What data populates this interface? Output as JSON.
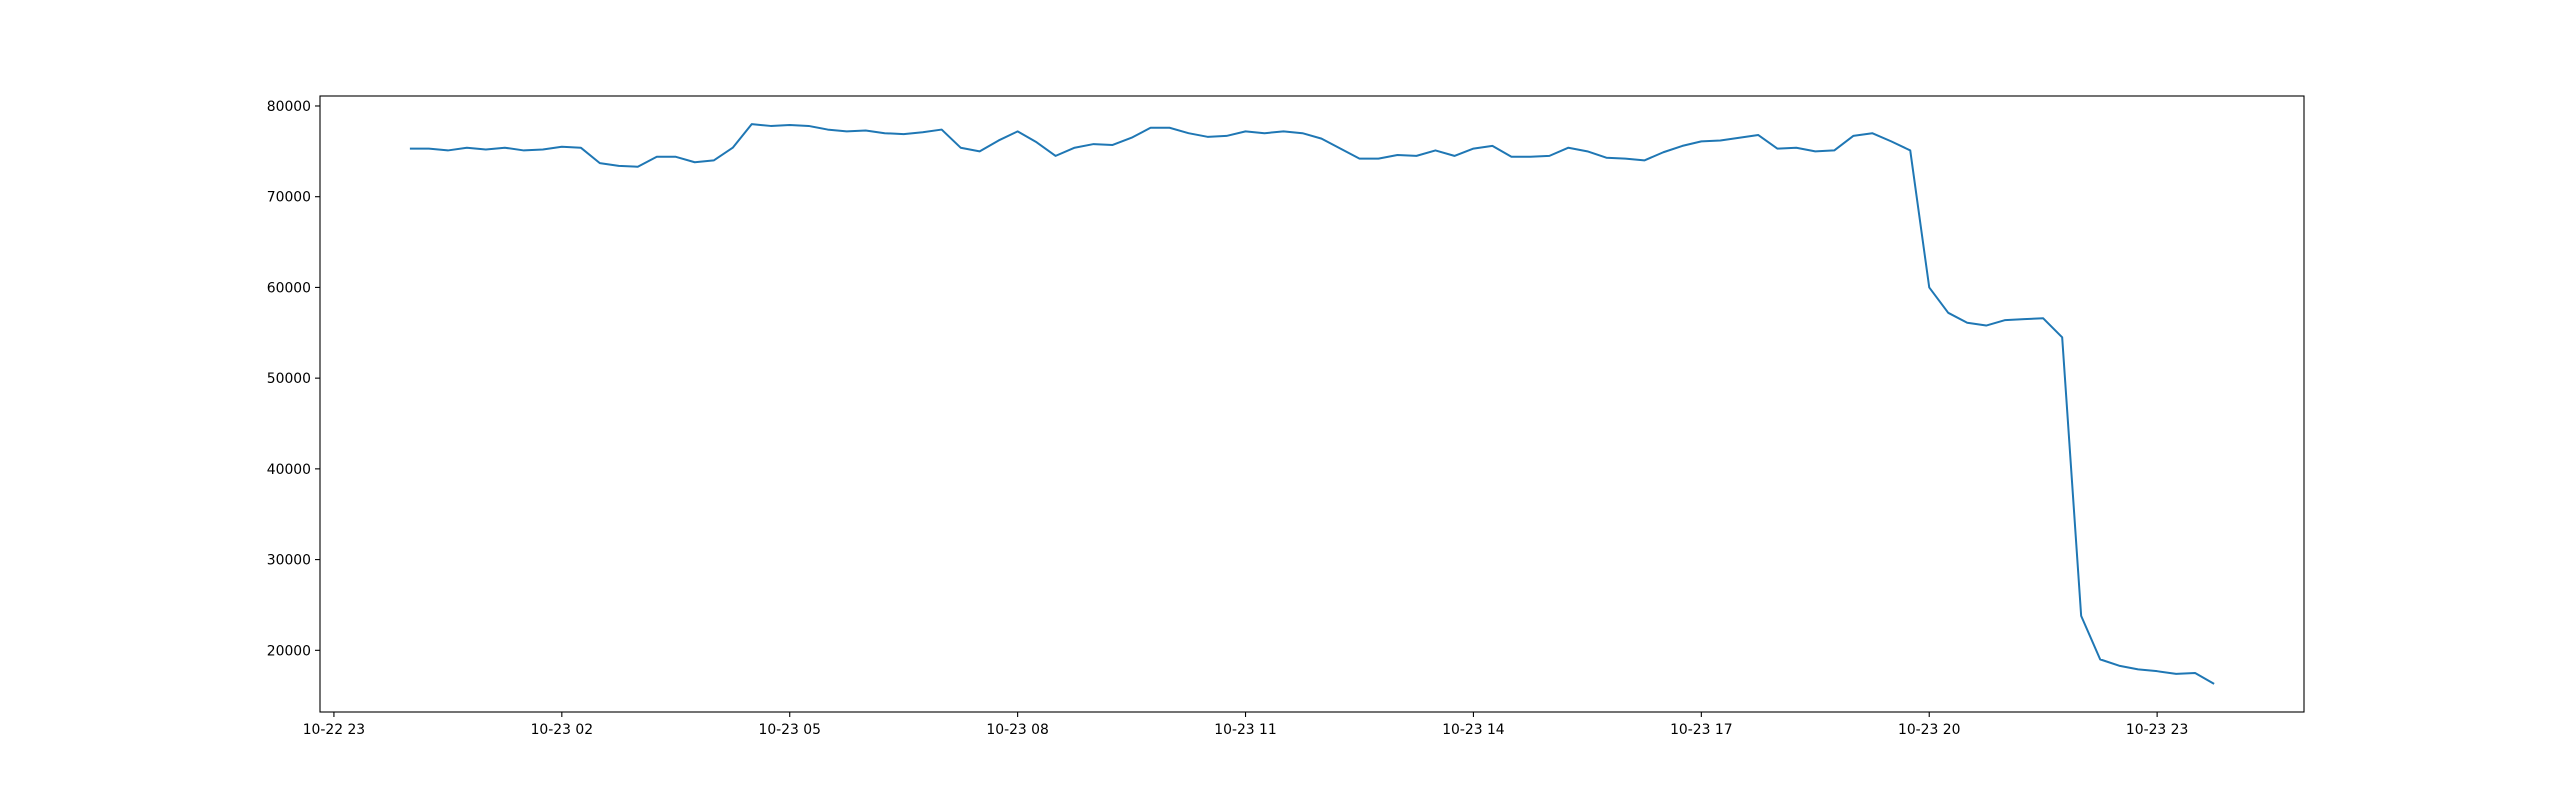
{
  "chart_data": {
    "type": "line",
    "x": [
      "10-23 00:00",
      "10-23 00:15",
      "10-23 00:30",
      "10-23 00:45",
      "10-23 01:00",
      "10-23 01:15",
      "10-23 01:30",
      "10-23 01:45",
      "10-23 02:00",
      "10-23 02:15",
      "10-23 02:30",
      "10-23 02:45",
      "10-23 03:00",
      "10-23 03:15",
      "10-23 03:30",
      "10-23 03:45",
      "10-23 04:00",
      "10-23 04:15",
      "10-23 04:30",
      "10-23 04:45",
      "10-23 05:00",
      "10-23 05:15",
      "10-23 05:30",
      "10-23 05:45",
      "10-23 06:00",
      "10-23 06:15",
      "10-23 06:30",
      "10-23 06:45",
      "10-23 07:00",
      "10-23 07:15",
      "10-23 07:30",
      "10-23 07:45",
      "10-23 08:00",
      "10-23 08:15",
      "10-23 08:30",
      "10-23 08:45",
      "10-23 09:00",
      "10-23 09:15",
      "10-23 09:30",
      "10-23 09:45",
      "10-23 10:00",
      "10-23 10:15",
      "10-23 10:30",
      "10-23 10:45",
      "10-23 11:00",
      "10-23 11:15",
      "10-23 11:30",
      "10-23 11:45",
      "10-23 12:00",
      "10-23 12:15",
      "10-23 12:30",
      "10-23 12:45",
      "10-23 13:00",
      "10-23 13:15",
      "10-23 13:30",
      "10-23 13:45",
      "10-23 14:00",
      "10-23 14:15",
      "10-23 14:30",
      "10-23 14:45",
      "10-23 15:00",
      "10-23 15:15",
      "10-23 15:30",
      "10-23 15:45",
      "10-23 16:00",
      "10-23 16:15",
      "10-23 16:30",
      "10-23 16:45",
      "10-23 17:00",
      "10-23 17:15",
      "10-23 17:30",
      "10-23 17:45",
      "10-23 18:00",
      "10-23 18:15",
      "10-23 18:30",
      "10-23 18:45",
      "10-23 19:00",
      "10-23 19:15",
      "10-23 19:30",
      "10-23 19:45",
      "10-23 20:00",
      "10-23 20:15",
      "10-23 20:30",
      "10-23 20:45",
      "10-23 21:00",
      "10-23 21:15",
      "10-23 21:30",
      "10-23 21:45",
      "10-23 22:00",
      "10-23 22:15",
      "10-23 22:30",
      "10-23 22:45",
      "10-23 23:00",
      "10-23 23:15",
      "10-23 23:30",
      "10-23 23:45"
    ],
    "series": [
      {
        "color": "#1f77b4",
        "values": [
          75300,
          75300,
          75100,
          75400,
          75200,
          75400,
          75100,
          75200,
          75500,
          75400,
          73700,
          73400,
          73300,
          74400,
          74400,
          73800,
          74000,
          75400,
          78000,
          77800,
          77900,
          77800,
          77400,
          77200,
          77300,
          77000,
          76900,
          77100,
          77400,
          75400,
          75000,
          76200,
          77200,
          76000,
          74500,
          75400,
          75800,
          75700,
          76500,
          77600,
          77600,
          77000,
          76600,
          76700,
          77200,
          77000,
          77200,
          77000,
          76400,
          75300,
          74200,
          74200,
          74600,
          74500,
          75100,
          74500,
          75300,
          75600,
          74400,
          74400,
          74500,
          75400,
          75000,
          74300,
          74200,
          74000,
          74900,
          75600,
          76100,
          76200,
          76500,
          76800,
          75300,
          75400,
          75000,
          75100,
          76700,
          77000,
          76100,
          75100,
          60000,
          57200,
          56100,
          55800,
          56400,
          56500,
          56600,
          54500,
          23800,
          19000,
          18300,
          17900,
          17700,
          17400,
          17500,
          16300
        ]
      }
    ],
    "xlim": [
      "10-22 22:49",
      "10-24 00:56"
    ],
    "xticks": [
      "10-22 23",
      "10-23 02",
      "10-23 05",
      "10-23 08",
      "10-23 11",
      "10-23 14",
      "10-23 17",
      "10-23 20",
      "10-23 23"
    ],
    "ylim": [
      13200,
      81100
    ],
    "yticks": [
      20000,
      30000,
      40000,
      50000,
      60000,
      70000,
      80000
    ]
  }
}
